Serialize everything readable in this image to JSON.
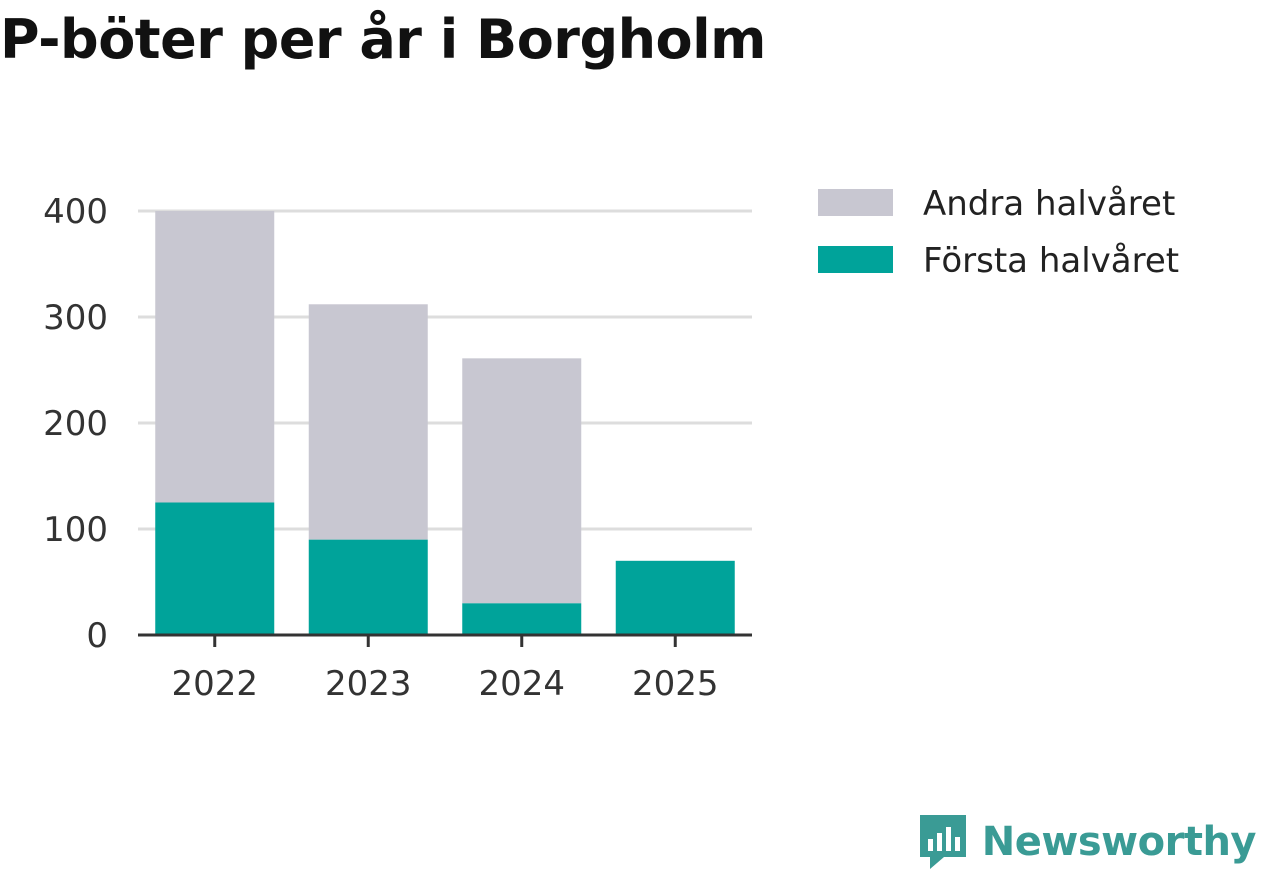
{
  "title": "P-böter per år i Borgholm",
  "brand": {
    "name": "Newsworthy",
    "icon": "newsworthy-logo-icon",
    "color": "#3a9b95"
  },
  "chart_data": {
    "type": "bar",
    "stacked": true,
    "title": "P-böter per år i Borgholm",
    "xlabel": "",
    "ylabel": "",
    "categories": [
      "2022",
      "2023",
      "2024",
      "2025"
    ],
    "series": [
      {
        "name": "Första halvåret",
        "values": [
          125,
          90,
          30,
          70
        ],
        "color": "#00a39a"
      },
      {
        "name": "Andra halvåret",
        "values": [
          275,
          222,
          231,
          0
        ],
        "color": "#c8c7d1"
      }
    ],
    "legend_order": [
      "Andra halvåret",
      "Första halvåret"
    ],
    "ylim": [
      0,
      400
    ],
    "yticks": [
      0,
      100,
      200,
      300,
      400
    ],
    "grid": true,
    "legend_position": "right"
  }
}
